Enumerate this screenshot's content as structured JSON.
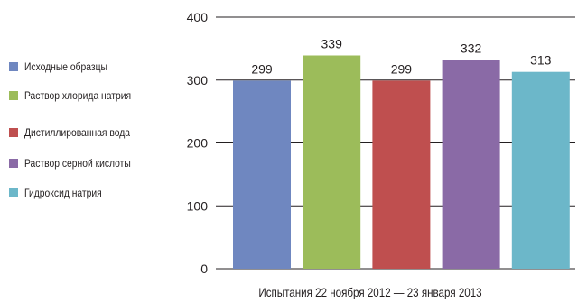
{
  "chart_data": {
    "type": "bar",
    "categories": [
      "Исходные образцы",
      "Раствор хлорида натрия",
      "Дистиллированная вода",
      "Раствор серной кислоты",
      "Гидроксид натрия"
    ],
    "values": [
      299,
      339,
      299,
      332,
      313
    ],
    "colors": [
      "#6f87c0",
      "#9cbc5a",
      "#bf4f4f",
      "#8a6aa6",
      "#6cb7c9"
    ],
    "title": "",
    "xlabel": "Испытания 22 ноября 2012 — 23 января 2013",
    "ylabel": "",
    "ylim": [
      0,
      400
    ],
    "y_ticks": [
      0,
      100,
      200,
      300,
      400
    ],
    "data_labels": [
      "299",
      "339",
      "299",
      "332",
      "313"
    ],
    "grid": true,
    "legend": "left"
  }
}
